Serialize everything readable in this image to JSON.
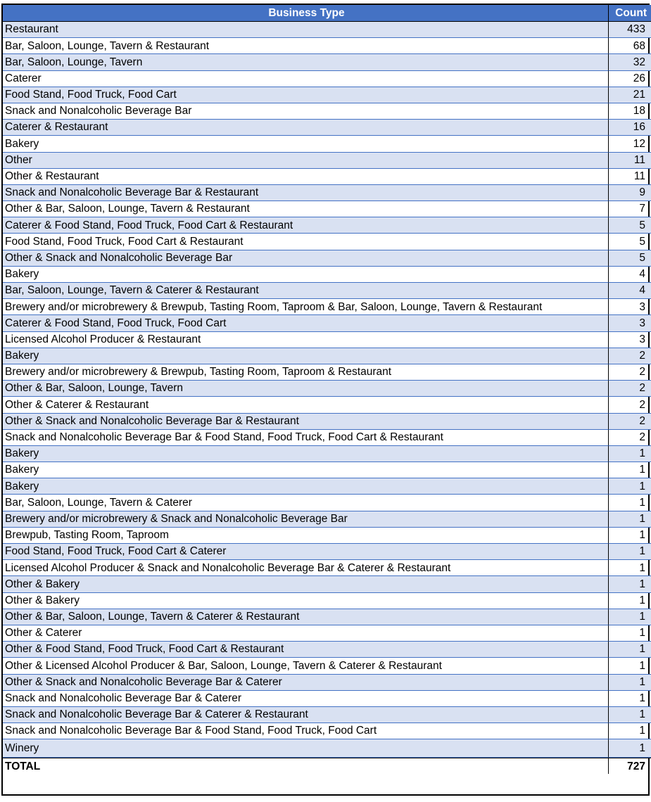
{
  "table": {
    "headers": [
      "Business Type",
      "Count"
    ],
    "rows": [
      [
        "Restaurant",
        "433"
      ],
      [
        "Bar, Saloon, Lounge, Tavern & Restaurant",
        "68"
      ],
      [
        "Bar, Saloon, Lounge, Tavern",
        "32"
      ],
      [
        "Caterer",
        "26"
      ],
      [
        "Food Stand, Food Truck, Food Cart",
        "21"
      ],
      [
        "Snack and Nonalcoholic Beverage Bar",
        "18"
      ],
      [
        "Caterer & Restaurant",
        "16"
      ],
      [
        "Bakery",
        "12"
      ],
      [
        "Other",
        "11"
      ],
      [
        "Other & Restaurant",
        "11"
      ],
      [
        "Snack and Nonalcoholic Beverage Bar & Restaurant",
        "9"
      ],
      [
        "Other & Bar, Saloon, Lounge, Tavern & Restaurant",
        "7"
      ],
      [
        "Caterer & Food Stand, Food Truck, Food Cart & Restaurant",
        "5"
      ],
      [
        "Food Stand, Food Truck, Food Cart & Restaurant",
        "5"
      ],
      [
        "Other & Snack and Nonalcoholic Beverage Bar",
        "5"
      ],
      [
        "Bakery",
        "4"
      ],
      [
        "Bar, Saloon, Lounge, Tavern & Caterer & Restaurant",
        "4"
      ],
      [
        "Brewery and/or microbrewery & Brewpub, Tasting Room, Taproom & Bar, Saloon, Lounge, Tavern & Restaurant",
        "3"
      ],
      [
        "Caterer & Food Stand, Food Truck, Food Cart",
        "3"
      ],
      [
        "Licensed Alcohol Producer & Restaurant",
        "3"
      ],
      [
        "Bakery",
        "2"
      ],
      [
        "Brewery and/or microbrewery & Brewpub, Tasting Room, Taproom & Restaurant",
        "2"
      ],
      [
        "Other & Bar, Saloon, Lounge, Tavern",
        "2"
      ],
      [
        "Other & Caterer & Restaurant",
        "2"
      ],
      [
        "Other & Snack and Nonalcoholic Beverage Bar & Restaurant",
        "2"
      ],
      [
        "Snack and Nonalcoholic Beverage Bar & Food Stand, Food Truck, Food Cart & Restaurant",
        "2"
      ],
      [
        "Bakery",
        "1"
      ],
      [
        "Bakery",
        "1"
      ],
      [
        "Bakery",
        "1"
      ],
      [
        "Bar, Saloon, Lounge, Tavern & Caterer",
        "1"
      ],
      [
        "Brewery and/or microbrewery & Snack and Nonalcoholic Beverage Bar",
        "1"
      ],
      [
        "Brewpub, Tasting Room, Taproom",
        "1"
      ],
      [
        "Food Stand, Food Truck, Food Cart & Caterer",
        "1"
      ],
      [
        "Licensed Alcohol Producer & Snack and Nonalcoholic Beverage Bar & Caterer & Restaurant",
        "1"
      ],
      [
        "Other & Bakery",
        "1"
      ],
      [
        "Other & Bakery",
        "1"
      ],
      [
        "Other & Bar, Saloon, Lounge, Tavern & Caterer & Restaurant",
        "1"
      ],
      [
        "Other & Caterer",
        "1"
      ],
      [
        "Other & Food Stand, Food Truck, Food Cart & Restaurant",
        "1"
      ],
      [
        "Other & Licensed Alcohol Producer & Bar, Saloon, Lounge, Tavern & Caterer & Restaurant",
        "1"
      ],
      [
        "Other & Snack and Nonalcoholic Beverage Bar & Caterer",
        "1"
      ],
      [
        "Snack and Nonalcoholic Beverage Bar & Caterer",
        "1"
      ],
      [
        "Snack and Nonalcoholic Beverage Bar & Caterer & Restaurant",
        "1"
      ],
      [
        "Snack and Nonalcoholic Beverage Bar & Food Stand, Food Truck, Food Cart",
        "1"
      ],
      [
        "Winery",
        "1"
      ]
    ],
    "total": [
      "TOTAL",
      "727"
    ]
  },
  "colors": {
    "header_bg": "#4472c4",
    "band_bg": "#d9e1f2",
    "border_blue": "#4472c4"
  }
}
